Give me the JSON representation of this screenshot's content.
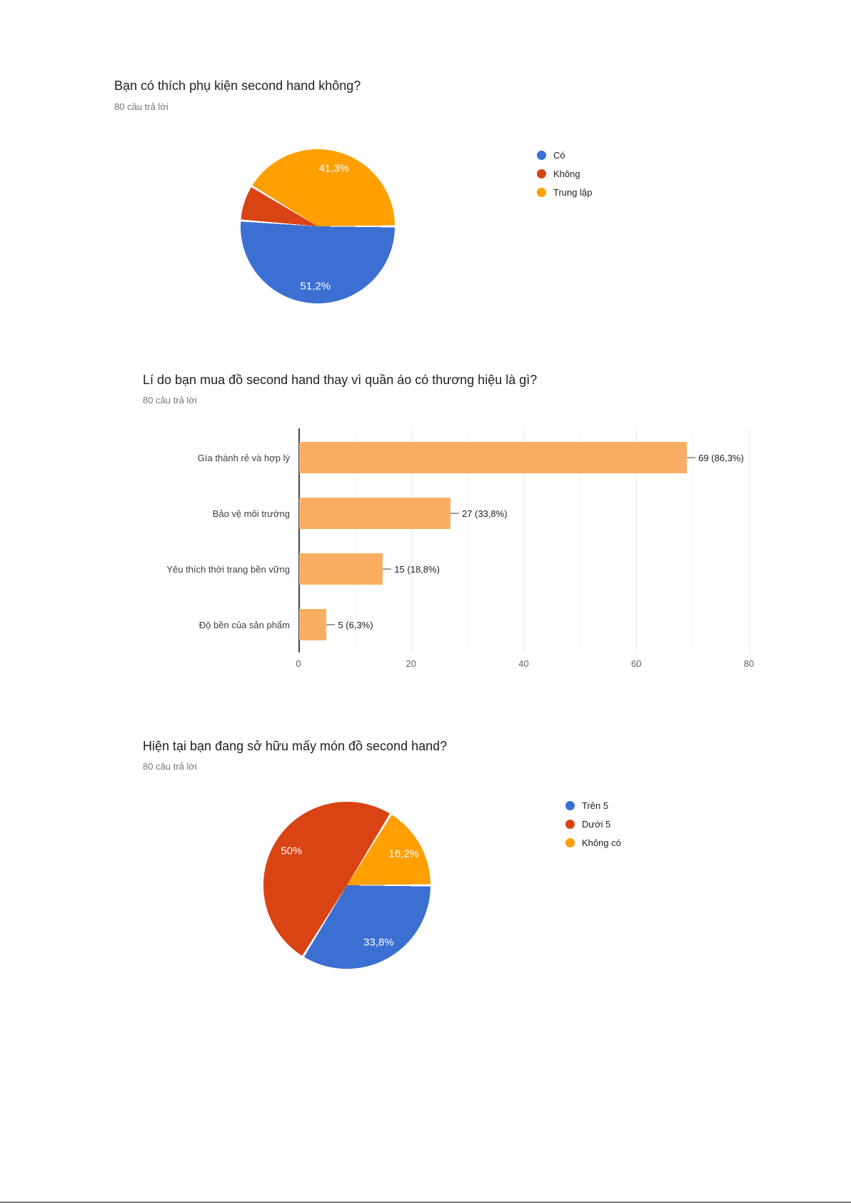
{
  "chart_data": [
    {
      "type": "pie",
      "title": "Bạn có thích phụ kiện second hand không?",
      "subtitle": "80 câu trả lời",
      "legend_position": "right",
      "start_angle": "3-oclock, clockwise",
      "categories": [
        "Có",
        "Không",
        "Trung lập"
      ],
      "values_pct": [
        51.2,
        7.5,
        41.3
      ],
      "slice_labels": [
        "51,2%",
        null,
        "41,3%"
      ],
      "colors": [
        "#3C6FD2",
        "#DA4314",
        "#FF9F00"
      ]
    },
    {
      "type": "bar",
      "orientation": "horizontal",
      "title": "Lí do bạn mua đồ second hand thay vì quần áo có thương hiệu là gì?",
      "subtitle": "80 câu trả lời",
      "categories": [
        "Gía thành rẻ và hợp lý",
        "Bảo vệ môi trường",
        "Yêu thích thời trang bền vững",
        "Độ bền của sản phẩm"
      ],
      "values": [
        69,
        27,
        15,
        5
      ],
      "value_labels": [
        "69 (86,3%)",
        "27 (33,8%)",
        "15 (18,8%)",
        "5 (6,3%)"
      ],
      "xlim": [
        0,
        80
      ],
      "x_ticks": [
        0,
        20,
        40,
        60,
        80
      ],
      "gridlines_every": 10,
      "grid": "vertical-light",
      "bar_color": "#F7AE63"
    },
    {
      "type": "pie",
      "title": "Hiện tại bạn đang sở hữu mấy món đồ second hand?",
      "subtitle": "80 câu trả lời",
      "legend_position": "right",
      "start_angle": "3-oclock, clockwise",
      "categories": [
        "Trên 5",
        "Dưới 5",
        "Không có"
      ],
      "values_pct": [
        33.8,
        50,
        16.2
      ],
      "slice_labels": [
        "33,8%",
        "50%",
        "16,2%"
      ],
      "colors": [
        "#3C6FD2",
        "#DA4314",
        "#FF9F00"
      ]
    }
  ]
}
